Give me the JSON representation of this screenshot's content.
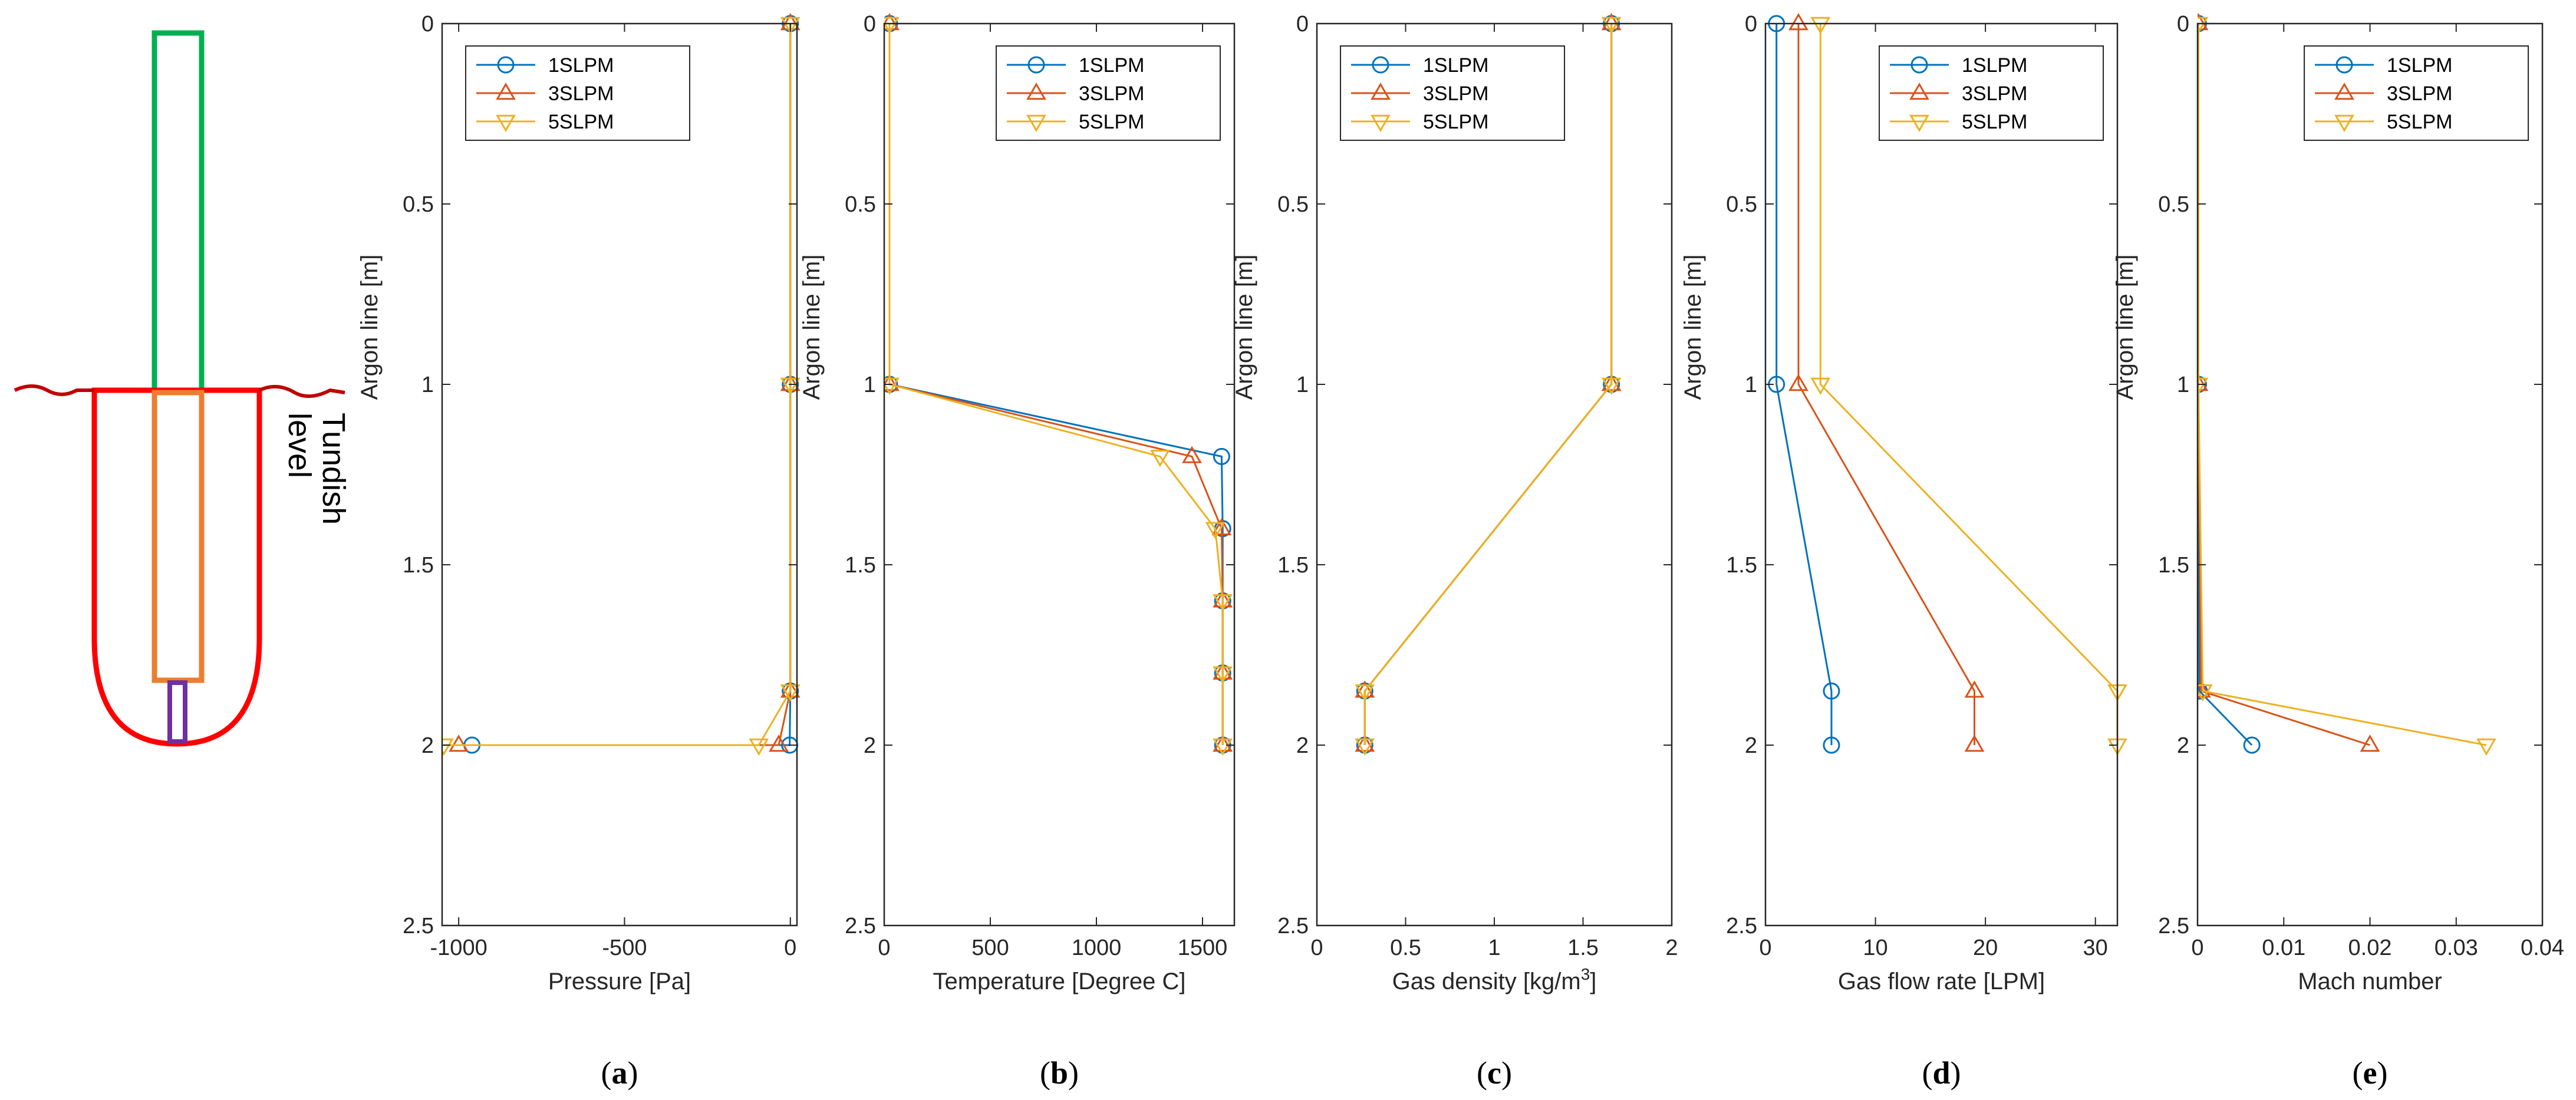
{
  "colors": {
    "series": [
      "#0072BD",
      "#D95319",
      "#EDB120"
    ],
    "schematic": {
      "snorkel": "#00B050",
      "tundish": "#FF0000",
      "inner": "#ED7D31",
      "nozzle": "#7030A0",
      "surface": "#C00000"
    }
  },
  "schematic": {
    "label_line1": "Tundish",
    "label_line2": "level"
  },
  "chart_data": [
    {
      "type": "line",
      "panel": "a",
      "xlabel": "Pressure [Pa]",
      "ylabel": "Argon line [m]",
      "xlim": [
        -1050,
        20
      ],
      "ylim": [
        0,
        2.5
      ],
      "y_reversed": true,
      "xticks": [
        -1000,
        -500,
        0
      ],
      "yticks": [
        0,
        0.5,
        1,
        1.5,
        2,
        2.5
      ],
      "legend": [
        "1SLPM",
        "3SLPM",
        "5SLPM"
      ],
      "legend_position": "top-left",
      "series": [
        {
          "name": "1SLPM",
          "marker": "circle",
          "points": [
            [
              0,
              0
            ],
            [
              0,
              1
            ],
            [
              0,
              1.85
            ],
            [
              -2,
              2
            ],
            [
              -960,
              2
            ]
          ]
        },
        {
          "name": "3SLPM",
          "marker": "triangle-up",
          "points": [
            [
              0,
              0
            ],
            [
              0,
              1
            ],
            [
              0,
              1.85
            ],
            [
              -35,
              2
            ],
            [
              -1000,
              2
            ]
          ]
        },
        {
          "name": "5SLPM",
          "marker": "triangle-down",
          "points": [
            [
              0,
              0
            ],
            [
              0,
              1
            ],
            [
              0,
              1.85
            ],
            [
              -95,
              2
            ],
            [
              -1045,
              2
            ]
          ]
        }
      ]
    },
    {
      "type": "line",
      "panel": "b",
      "xlabel": "Temperature [Degree C]",
      "ylabel": "Argon line [m]",
      "xlim": [
        0,
        1650
      ],
      "ylim": [
        0,
        2.5
      ],
      "y_reversed": true,
      "xticks": [
        0,
        500,
        1000,
        1500
      ],
      "yticks": [
        0,
        0.5,
        1,
        1.5,
        2,
        2.5
      ],
      "legend": [
        "1SLPM",
        "3SLPM",
        "5SLPM"
      ],
      "legend_position": "top-right",
      "series": [
        {
          "name": "1SLPM",
          "marker": "circle",
          "points": [
            [
              25,
              0
            ],
            [
              25,
              1
            ],
            [
              1590,
              1.2
            ],
            [
              1595,
              1.4
            ],
            [
              1595,
              1.6
            ],
            [
              1595,
              1.8
            ],
            [
              1595,
              2
            ]
          ]
        },
        {
          "name": "3SLPM",
          "marker": "triangle-up",
          "points": [
            [
              25,
              0
            ],
            [
              25,
              1
            ],
            [
              1450,
              1.2
            ],
            [
              1590,
              1.4
            ],
            [
              1595,
              1.6
            ],
            [
              1595,
              1.8
            ],
            [
              1595,
              2
            ]
          ]
        },
        {
          "name": "5SLPM",
          "marker": "triangle-down",
          "points": [
            [
              25,
              0
            ],
            [
              25,
              1
            ],
            [
              1300,
              1.2
            ],
            [
              1560,
              1.4
            ],
            [
              1595,
              1.6
            ],
            [
              1595,
              1.8
            ],
            [
              1595,
              2
            ]
          ]
        }
      ]
    },
    {
      "type": "line",
      "panel": "c",
      "xlabel": "Gas density [kg/m",
      "xlabel_sup": "3",
      "xlabel_end": "]",
      "ylabel": "Argon line [m]",
      "xlim": [
        0,
        2
      ],
      "ylim": [
        0,
        2.5
      ],
      "y_reversed": true,
      "xticks": [
        0,
        0.5,
        1,
        1.5,
        2
      ],
      "yticks": [
        0,
        0.5,
        1,
        1.5,
        2,
        2.5
      ],
      "legend": [
        "1SLPM",
        "3SLPM",
        "5SLPM"
      ],
      "legend_position": "top-left",
      "series": [
        {
          "name": "1SLPM",
          "marker": "circle",
          "points": [
            [
              1.66,
              0
            ],
            [
              1.66,
              1
            ],
            [
              0.27,
              1.85
            ],
            [
              0.27,
              2
            ]
          ]
        },
        {
          "name": "3SLPM",
          "marker": "triangle-up",
          "points": [
            [
              1.66,
              0
            ],
            [
              1.66,
              1
            ],
            [
              0.27,
              1.85
            ],
            [
              0.27,
              2
            ]
          ]
        },
        {
          "name": "5SLPM",
          "marker": "triangle-down",
          "points": [
            [
              1.66,
              0
            ],
            [
              1.66,
              1
            ],
            [
              0.27,
              1.85
            ],
            [
              0.27,
              2
            ]
          ]
        }
      ]
    },
    {
      "type": "line",
      "panel": "d",
      "xlabel": "Gas flow rate [LPM]",
      "ylabel": "Argon line [m]",
      "xlim": [
        0,
        32
      ],
      "ylim": [
        0,
        2.5
      ],
      "y_reversed": true,
      "xticks": [
        0,
        10,
        20,
        30
      ],
      "yticks": [
        0,
        0.5,
        1,
        1.5,
        2,
        2.5
      ],
      "legend": [
        "1SLPM",
        "3SLPM",
        "5SLPM"
      ],
      "legend_position": "top-right",
      "series": [
        {
          "name": "1SLPM",
          "marker": "circle",
          "points": [
            [
              1,
              0
            ],
            [
              1,
              1
            ],
            [
              6,
              1.85
            ],
            [
              6,
              2
            ]
          ]
        },
        {
          "name": "3SLPM",
          "marker": "triangle-up",
          "points": [
            [
              3,
              0
            ],
            [
              3,
              1
            ],
            [
              19,
              1.85
            ],
            [
              19,
              2
            ]
          ]
        },
        {
          "name": "5SLPM",
          "marker": "triangle-down",
          "points": [
            [
              5,
              0
            ],
            [
              5,
              1
            ],
            [
              32,
              1.85
            ],
            [
              32,
              2
            ]
          ]
        }
      ]
    },
    {
      "type": "line",
      "panel": "e",
      "xlabel": "Mach number",
      "ylabel": "Argon line [m]",
      "xlim": [
        0,
        0.04
      ],
      "ylim": [
        0,
        2.5
      ],
      "y_reversed": true,
      "xticks": [
        0,
        0.01,
        0.02,
        0.03,
        0.04
      ],
      "yticks": [
        0,
        0.5,
        1,
        1.5,
        2,
        2.5
      ],
      "legend": [
        "1SLPM",
        "3SLPM",
        "5SLPM"
      ],
      "legend_position": "top-right",
      "series": [
        {
          "name": "1SLPM",
          "marker": "circle",
          "points": [
            [
              0.0001,
              0
            ],
            [
              0.0001,
              1
            ],
            [
              0.0002,
              1.85
            ],
            [
              0.0063,
              2
            ]
          ]
        },
        {
          "name": "3SLPM",
          "marker": "triangle-up",
          "points": [
            [
              0.0001,
              0
            ],
            [
              0.0001,
              1
            ],
            [
              0.0004,
              1.85
            ],
            [
              0.02,
              2
            ]
          ]
        },
        {
          "name": "5SLPM",
          "marker": "triangle-down",
          "points": [
            [
              0.0001,
              0
            ],
            [
              0.0001,
              1
            ],
            [
              0.0006,
              1.85
            ],
            [
              0.0335,
              2
            ]
          ]
        }
      ]
    }
  ],
  "panel_labels": [
    "a",
    "b",
    "c",
    "d",
    "e"
  ]
}
